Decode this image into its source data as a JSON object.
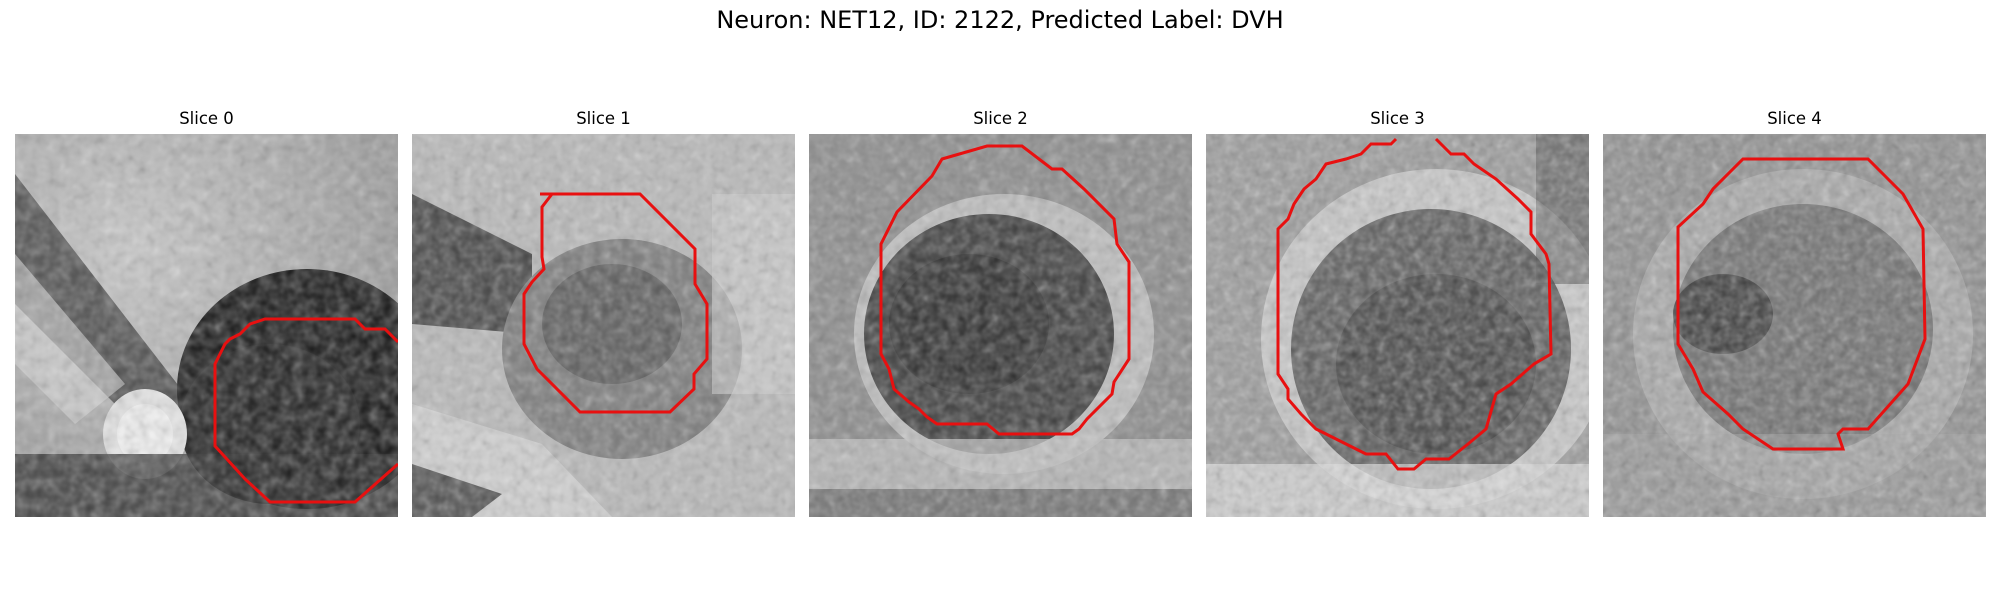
{
  "figure": {
    "title": "Neuron: NET12, ID: 2122, Predicted Label: DVH"
  },
  "panels": [
    {
      "label": "Slice 0",
      "outline_color": "#e81010"
    },
    {
      "label": "Slice 1",
      "outline_color": "#e81010"
    },
    {
      "label": "Slice 2",
      "outline_color": "#e81010"
    },
    {
      "label": "Slice 3",
      "outline_color": "#e81010"
    },
    {
      "label": "Slice 4",
      "outline_color": "#e81010"
    }
  ]
}
